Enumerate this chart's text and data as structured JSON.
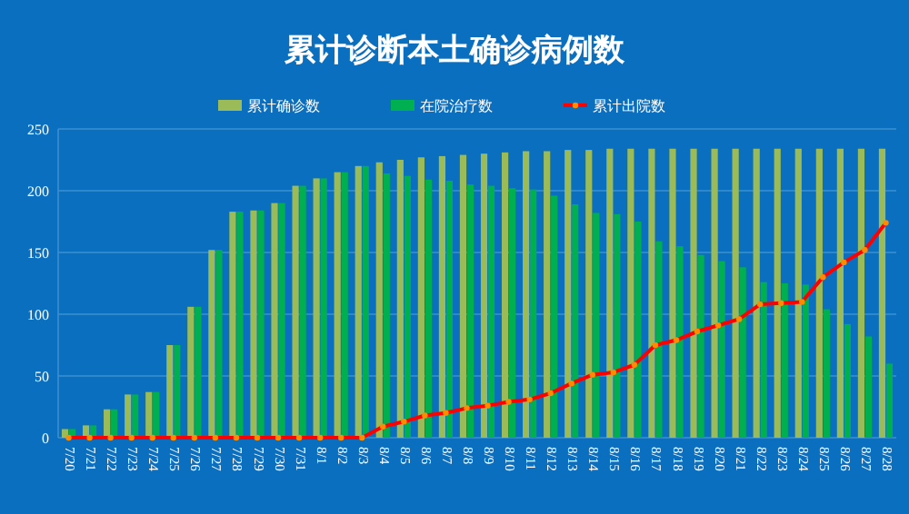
{
  "chart_data": {
    "type": "bar",
    "title": "累计诊断本土确诊病例数",
    "categories": [
      "7/20",
      "7/21",
      "7/22",
      "7/23",
      "7/24",
      "7/25",
      "7/26",
      "7/27",
      "7/28",
      "7/29",
      "7/30",
      "7/31",
      "8/1",
      "8/2",
      "8/3",
      "8/4",
      "8/5",
      "8/6",
      "8/7",
      "8/8",
      "8/9",
      "8/10",
      "8/11",
      "8/12",
      "8/13",
      "8/14",
      "8/15",
      "8/16",
      "8/17",
      "8/18",
      "8/19",
      "8/20",
      "8/21",
      "8/22",
      "8/23",
      "8/24",
      "8/25",
      "8/26",
      "8/27",
      "8/28"
    ],
    "series": [
      {
        "name": "累计确诊数",
        "color": "#9bbb59",
        "values": [
          7,
          10,
          23,
          35,
          37,
          75,
          106,
          152,
          183,
          184,
          190,
          204,
          210,
          215,
          220,
          223,
          225,
          227,
          228,
          229,
          230,
          231,
          232,
          232,
          233,
          233,
          234,
          234,
          234,
          234,
          234,
          234,
          234,
          234,
          234,
          234,
          234,
          234,
          234,
          234
        ]
      },
      {
        "name": "在院治疗数",
        "color": "#00b050",
        "values": [
          7,
          10,
          23,
          35,
          37,
          75,
          106,
          152,
          183,
          184,
          190,
          204,
          210,
          215,
          220,
          214,
          212,
          209,
          208,
          205,
          204,
          202,
          201,
          196,
          189,
          182,
          181,
          175,
          159,
          155,
          148,
          143,
          138,
          126,
          125,
          124,
          104,
          92,
          82,
          60
        ]
      },
      {
        "name": "累计出院数",
        "type": "line",
        "color": "#ff0000",
        "values": [
          0,
          0,
          0,
          0,
          0,
          0,
          0,
          0,
          0,
          0,
          0,
          0,
          0,
          0,
          0,
          9,
          13,
          18,
          20,
          24,
          26,
          29,
          31,
          36,
          44,
          51,
          53,
          59,
          75,
          79,
          86,
          91,
          96,
          108,
          109,
          110,
          130,
          142,
          152,
          174
        ]
      }
    ],
    "ylim": [
      0,
      250
    ],
    "yticks": [
      0,
      50,
      100,
      150,
      200,
      250
    ],
    "grid": "y",
    "legend": "top",
    "marker": "circle"
  }
}
